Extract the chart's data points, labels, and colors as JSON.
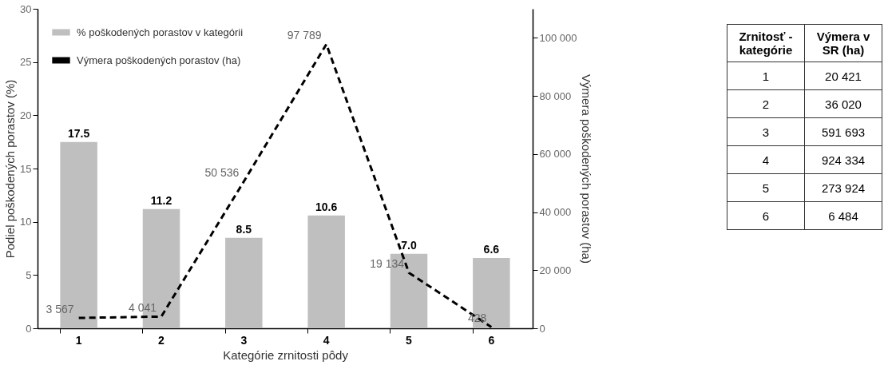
{
  "chart_data": [
    {
      "type": "bar",
      "xlabel": "Kategórie zrnitosti pôdy",
      "ylabel": "Podiel poškodených porastov (%)",
      "y2label": "Výmera poškodených porastov (ha)",
      "categories": [
        "1",
        "2",
        "3",
        "4",
        "5",
        "6"
      ],
      "series": [
        {
          "name": "% poškodených porastov v kategórii",
          "color": "#bfbfbf",
          "values": [
            17.5,
            11.2,
            8.5,
            10.6,
            7.0,
            6.6
          ],
          "value_labels": [
            "17.5",
            "11.2",
            "8.5",
            "10.6",
            "7.0",
            "6.6"
          ]
        },
        {
          "name": "Výmera poškodených porastov (ha)",
          "type": "line",
          "axis": "y2",
          "color": "#000000",
          "line_style": "dashed",
          "marker": "none",
          "values": [
            3567,
            4041,
            50536,
            97789,
            19134,
            428
          ],
          "value_labels": [
            "3 567",
            "4 041",
            "50 536",
            "97 789",
            "19 134",
            "428"
          ]
        }
      ],
      "ylim": [
        0,
        30
      ],
      "yticks": [
        0,
        5,
        10,
        15,
        20,
        25,
        30
      ],
      "y2lim": [
        0,
        110000
      ],
      "y2ticks": [
        0,
        {
          "value": 20000,
          "label": "20 000"
        },
        {
          "value": 40000,
          "label": "40 000"
        },
        {
          "value": 60000,
          "label": "60 000"
        },
        {
          "value": 80000,
          "label": "80 000"
        },
        {
          "value": 100000,
          "label": "100 000"
        }
      ],
      "legend": "top left",
      "grid": false
    },
    {
      "type": "heatmap",
      "ylabel": "Zrnitosť - kategórie",
      "categories": [
        "Výmera v SR (ha)"
      ],
      "y_categories": [
        "1",
        "2",
        "3",
        "4",
        "5",
        "6"
      ],
      "cells": [
        [
          20421
        ],
        [
          36020
        ],
        [
          591693
        ],
        [
          924334
        ],
        [
          273924
        ],
        [
          6484
        ]
      ],
      "cell_labels": [
        [
          "20 421"
        ],
        [
          "36 020"
        ],
        [
          "591 693"
        ],
        [
          "924 334"
        ],
        [
          "273 924"
        ],
        [
          "6 484"
        ]
      ]
    }
  ]
}
